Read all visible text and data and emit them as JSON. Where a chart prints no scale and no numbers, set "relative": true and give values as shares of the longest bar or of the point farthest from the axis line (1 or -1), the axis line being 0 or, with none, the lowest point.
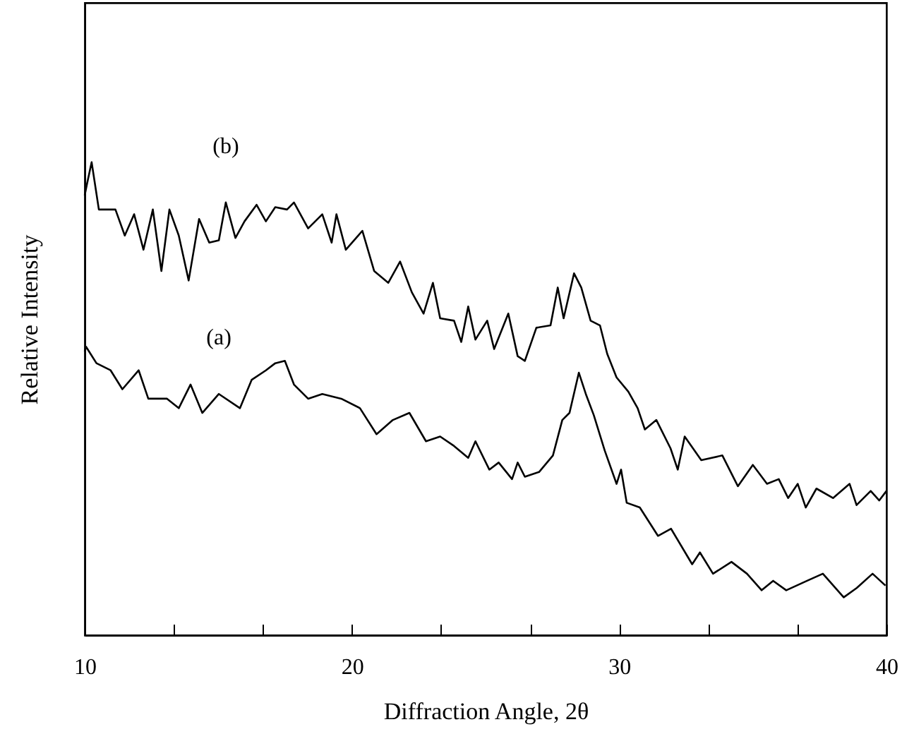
{
  "chart_data": {
    "type": "line",
    "relative": true,
    "xlabel": "Diffraction Angle, 2θ",
    "ylabel": "Relative Intensity",
    "xlim": [
      10,
      40
    ],
    "xticks": [
      10,
      {
        "value": 13.33,
        "label": null
      },
      {
        "value": 16.67,
        "label": null
      },
      20,
      {
        "value": 23.33,
        "label": null
      },
      {
        "value": 26.67,
        "label": null
      },
      30,
      {
        "value": 33.33,
        "label": null
      },
      {
        "value": 36.67,
        "label": null
      },
      40
    ],
    "grid": false,
    "marker": "none",
    "line_style": "solid",
    "series": [
      {
        "name": "(b)",
        "color": "#000000",
        "x": [
          10.0,
          10.09,
          10.26,
          10.53,
          11.15,
          11.5,
          11.85,
          12.2,
          12.55,
          12.87,
          13.17,
          13.52,
          13.89,
          14.28,
          14.66,
          15.02,
          15.28,
          15.64,
          15.98,
          16.43,
          16.78,
          17.13,
          17.57,
          17.83,
          18.36,
          18.89,
          19.24,
          19.42,
          19.77,
          20.39,
          20.83,
          21.36,
          21.8,
          22.24,
          22.68,
          23.03,
          23.3,
          23.82,
          24.09,
          24.35,
          24.62,
          25.06,
          25.32,
          25.85,
          26.2,
          26.47,
          26.9,
          27.43,
          27.7,
          27.92,
          28.31,
          28.58,
          28.93,
          29.28,
          29.55,
          29.9,
          30.34,
          30.69,
          30.96,
          31.39,
          31.92,
          32.19,
          32.45,
          33.07,
          33.86,
          34.44,
          35.0,
          35.53,
          35.97,
          36.32,
          36.68,
          36.98,
          37.38,
          38.0,
          38.62,
          38.88,
          39.41,
          39.73,
          40.0
        ],
        "values": [
          0.93,
          0.955,
          1,
          0.9,
          0.9,
          0.845,
          0.89,
          0.815,
          0.9,
          0.77,
          0.9,
          0.845,
          0.75,
          0.88,
          0.83,
          0.835,
          0.915,
          0.84,
          0.875,
          0.91,
          0.875,
          0.905,
          0.9,
          0.915,
          0.86,
          0.89,
          0.83,
          0.89,
          0.815,
          0.855,
          0.77,
          0.745,
          0.79,
          0.725,
          0.68,
          0.745,
          0.67,
          0.665,
          0.62,
          0.695,
          0.625,
          0.665,
          0.605,
          0.68,
          0.59,
          0.58,
          0.65,
          0.655,
          0.735,
          0.67,
          0.765,
          0.735,
          0.665,
          0.655,
          0.595,
          0.545,
          0.515,
          0.48,
          0.435,
          0.455,
          0.395,
          0.35,
          0.42,
          0.37,
          0.38,
          0.315,
          0.36,
          0.32,
          0.33,
          0.29,
          0.32,
          0.27,
          0.31,
          0.29,
          0.32,
          0.275,
          0.305,
          0.285,
          0.305
        ]
      },
      {
        "name": "(a)",
        "color": "#000000",
        "x": [
          10.0,
          10.05,
          10.44,
          10.97,
          11.41,
          12.02,
          12.38,
          13.08,
          13.52,
          13.96,
          14.4,
          15.02,
          15.81,
          16.25,
          16.78,
          17.13,
          17.49,
          17.83,
          18.36,
          18.89,
          19.6,
          20.3,
          20.92,
          21.53,
          22.15,
          22.77,
          23.3,
          23.82,
          24.35,
          24.62,
          25.14,
          25.49,
          25.99,
          26.2,
          26.47,
          27.0,
          27.52,
          27.87,
          28.14,
          28.49,
          28.75,
          29.05,
          29.46,
          29.9,
          30.07,
          30.28,
          30.77,
          31.45,
          31.94,
          32.73,
          33.02,
          33.51,
          34.2,
          34.78,
          35.33,
          35.76,
          36.25,
          37.03,
          37.62,
          38.4,
          38.89,
          39.48,
          39.96
        ],
        "values": [
          0.6,
          0.61,
          0.575,
          0.56,
          0.52,
          0.56,
          0.5,
          0.5,
          0.48,
          0.53,
          0.47,
          0.51,
          0.48,
          0.54,
          0.56,
          0.575,
          0.58,
          0.53,
          0.5,
          0.51,
          0.5,
          0.48,
          0.425,
          0.455,
          0.47,
          0.41,
          0.42,
          0.4,
          0.375,
          0.41,
          0.35,
          0.365,
          0.33,
          0.365,
          0.335,
          0.345,
          0.38,
          0.455,
          0.47,
          0.555,
          0.51,
          0.465,
          0.39,
          0.32,
          0.35,
          0.28,
          0.27,
          0.21,
          0.225,
          0.15,
          0.175,
          0.13,
          0.155,
          0.13,
          0.095,
          0.115,
          0.095,
          0.115,
          0.13,
          0.08,
          0.1,
          0.13,
          0.105
        ]
      }
    ]
  }
}
